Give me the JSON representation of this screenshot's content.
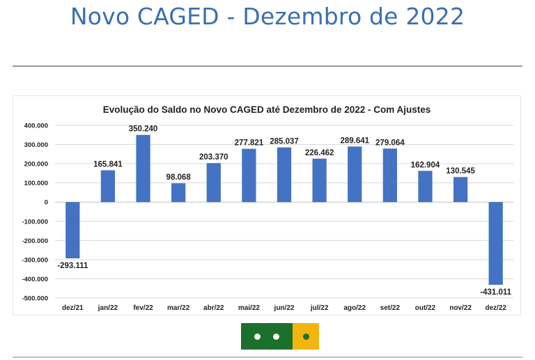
{
  "page": {
    "title": "Novo CAGED - Dezembro de 2022"
  },
  "slider": {
    "slide_count": 3,
    "active_slide": 3,
    "colors": {
      "primary": "#1d6f2c",
      "accent": "#f2b50f",
      "dot": "#f6f6f6"
    }
  },
  "chart_data": {
    "type": "bar",
    "title": "Evolução do Saldo no Novo CAGED até Dezembro de 2022 - Com Ajustes",
    "xlabel": "",
    "ylabel": "",
    "categories": [
      "dez/21",
      "jan/22",
      "fev/22",
      "mar/22",
      "abr/22",
      "mai/22",
      "jun/22",
      "jul/22",
      "ago/22",
      "set/22",
      "out/22",
      "nov/22",
      "dez/22"
    ],
    "values": [
      -293111,
      165841,
      350240,
      98068,
      203370,
      277821,
      285037,
      226462,
      289641,
      279064,
      162904,
      130545,
      -431011
    ],
    "value_labels": [
      "-293.111",
      "165.841",
      "350.240",
      "98.068",
      "203.370",
      "277.821",
      "285.037",
      "226.462",
      "289.641",
      "279.064",
      "162.904",
      "130.545",
      "-431.011"
    ],
    "ylim": [
      -500000,
      400000
    ],
    "yticks": [
      400000,
      300000,
      200000,
      100000,
      0,
      -100000,
      -200000,
      -300000,
      -400000,
      -500000
    ],
    "ytick_labels": [
      "400.000",
      "300.000",
      "200.000",
      "100.000",
      "0",
      "-100.000",
      "-200.000",
      "-300.000",
      "-400.000",
      "-500.000"
    ],
    "grid": true,
    "bar_color": "#4472c4",
    "legend": "none"
  }
}
